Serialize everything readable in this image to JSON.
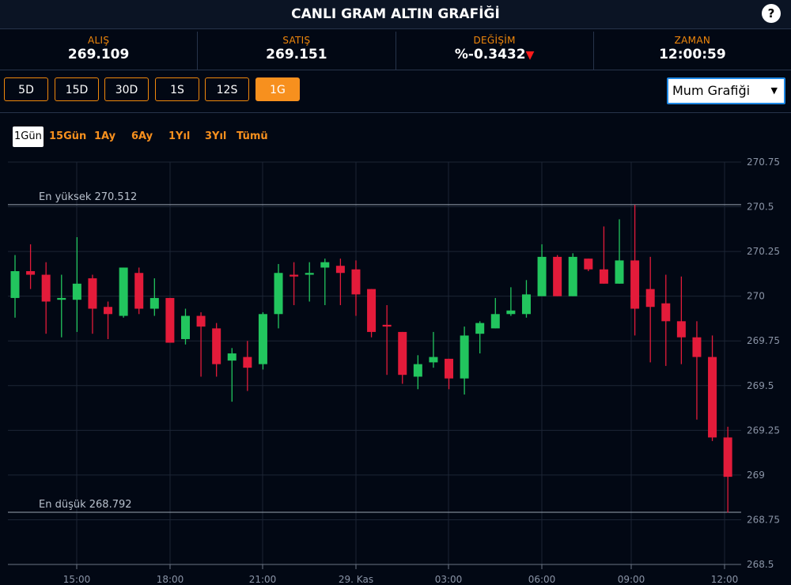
{
  "header": {
    "title": "CANLI GRAM ALTIN GRAFİĞİ",
    "help_label": "?"
  },
  "stats": {
    "alis": {
      "label": "ALIŞ",
      "value": "269.109"
    },
    "satis": {
      "label": "SATIŞ",
      "value": "269.151"
    },
    "degisim": {
      "label": "DEĞİŞİM",
      "value": "%-0.3432"
    },
    "zaman": {
      "label": "ZAMAN",
      "value": "12:00:59"
    }
  },
  "periods": [
    "5D",
    "15D",
    "30D",
    "1S",
    "12S",
    "1G"
  ],
  "active_period": "1G",
  "chart_type_select": {
    "selected": "Mum Grafiği"
  },
  "ranges": [
    "1Gün",
    "15Gün",
    "1Ay",
    "6Ay",
    "1Yıl",
    "3Yıl",
    "Tümü"
  ],
  "active_range": "1Gün",
  "colors": {
    "up": "#22c55e",
    "down": "#e31b3a",
    "accent": "#f7901e",
    "background": "#020814"
  },
  "chart_data": {
    "type": "candlestick",
    "y_ticks": [
      "270.75",
      "270.5",
      "270.25",
      "270",
      "269.75",
      "269.5",
      "269.25",
      "269",
      "268.75",
      "268.5"
    ],
    "ylim": [
      268.5,
      270.75
    ],
    "x_ticks": [
      "15:00",
      "18:00",
      "21:00",
      "29. Kas",
      "03:00",
      "06:00",
      "09:00",
      "12:00"
    ],
    "grid": true,
    "high_line": {
      "label": "En yüksek 270.512",
      "value": 270.512
    },
    "low_line": {
      "label": "En düşük 268.792",
      "value": 268.792
    },
    "candles": [
      {
        "o": 269.99,
        "h": 270.23,
        "l": 269.88,
        "c": 270.14
      },
      {
        "o": 270.14,
        "h": 270.29,
        "l": 270.04,
        "c": 270.12
      },
      {
        "o": 270.12,
        "h": 270.19,
        "l": 269.79,
        "c": 269.97
      },
      {
        "o": 269.98,
        "h": 270.12,
        "l": 269.77,
        "c": 269.99
      },
      {
        "o": 269.98,
        "h": 270.33,
        "l": 269.8,
        "c": 270.07
      },
      {
        "o": 270.1,
        "h": 270.12,
        "l": 269.79,
        "c": 269.93
      },
      {
        "o": 269.94,
        "h": 269.97,
        "l": 269.76,
        "c": 269.9
      },
      {
        "o": 269.89,
        "h": 270.16,
        "l": 269.88,
        "c": 270.16
      },
      {
        "o": 270.13,
        "h": 270.16,
        "l": 269.9,
        "c": 269.93
      },
      {
        "o": 269.93,
        "h": 270.1,
        "l": 269.89,
        "c": 269.99
      },
      {
        "o": 269.99,
        "h": 269.99,
        "l": 269.74,
        "c": 269.74
      },
      {
        "o": 269.76,
        "h": 269.93,
        "l": 269.73,
        "c": 269.89
      },
      {
        "o": 269.89,
        "h": 269.91,
        "l": 269.55,
        "c": 269.83
      },
      {
        "o": 269.82,
        "h": 269.85,
        "l": 269.55,
        "c": 269.62
      },
      {
        "o": 269.64,
        "h": 269.71,
        "l": 269.41,
        "c": 269.68
      },
      {
        "o": 269.66,
        "h": 269.75,
        "l": 269.47,
        "c": 269.6
      },
      {
        "o": 269.62,
        "h": 269.91,
        "l": 269.59,
        "c": 269.9
      },
      {
        "o": 269.9,
        "h": 270.18,
        "l": 269.82,
        "c": 270.13
      },
      {
        "o": 270.12,
        "h": 270.19,
        "l": 269.95,
        "c": 270.11
      },
      {
        "o": 270.12,
        "h": 270.19,
        "l": 269.97,
        "c": 270.13
      },
      {
        "o": 270.16,
        "h": 270.21,
        "l": 269.95,
        "c": 270.19
      },
      {
        "o": 270.17,
        "h": 270.21,
        "l": 269.95,
        "c": 270.13
      },
      {
        "o": 270.15,
        "h": 270.2,
        "l": 269.89,
        "c": 270.01
      },
      {
        "o": 270.04,
        "h": 270.04,
        "l": 269.77,
        "c": 269.8
      },
      {
        "o": 269.84,
        "h": 269.95,
        "l": 269.56,
        "c": 269.83
      },
      {
        "o": 269.8,
        "h": 269.8,
        "l": 269.51,
        "c": 269.56
      },
      {
        "o": 269.55,
        "h": 269.67,
        "l": 269.48,
        "c": 269.62
      },
      {
        "o": 269.63,
        "h": 269.8,
        "l": 269.6,
        "c": 269.66
      },
      {
        "o": 269.65,
        "h": 269.65,
        "l": 269.48,
        "c": 269.54
      },
      {
        "o": 269.54,
        "h": 269.83,
        "l": 269.45,
        "c": 269.78
      },
      {
        "o": 269.79,
        "h": 269.86,
        "l": 269.68,
        "c": 269.85
      },
      {
        "o": 269.82,
        "h": 269.99,
        "l": 269.82,
        "c": 269.9
      },
      {
        "o": 269.9,
        "h": 270.05,
        "l": 269.89,
        "c": 269.92
      },
      {
        "o": 269.9,
        "h": 270.09,
        "l": 269.88,
        "c": 270.01
      },
      {
        "o": 270.0,
        "h": 270.29,
        "l": 270.0,
        "c": 270.22
      },
      {
        "o": 270.22,
        "h": 270.23,
        "l": 270.0,
        "c": 270.0
      },
      {
        "o": 270.0,
        "h": 270.24,
        "l": 270.0,
        "c": 270.22
      },
      {
        "o": 270.21,
        "h": 270.21,
        "l": 270.14,
        "c": 270.15
      },
      {
        "o": 270.15,
        "h": 270.39,
        "l": 270.07,
        "c": 270.07
      },
      {
        "o": 270.07,
        "h": 270.43,
        "l": 270.07,
        "c": 270.2
      },
      {
        "o": 270.2,
        "h": 270.51,
        "l": 269.78,
        "c": 269.93
      },
      {
        "o": 270.04,
        "h": 270.22,
        "l": 269.63,
        "c": 269.94
      },
      {
        "o": 269.96,
        "h": 270.12,
        "l": 269.61,
        "c": 269.86
      },
      {
        "o": 269.86,
        "h": 270.11,
        "l": 269.62,
        "c": 269.77
      },
      {
        "o": 269.77,
        "h": 269.86,
        "l": 269.31,
        "c": 269.66
      },
      {
        "o": 269.66,
        "h": 269.78,
        "l": 269.19,
        "c": 269.21
      },
      {
        "o": 269.21,
        "h": 269.27,
        "l": 268.79,
        "c": 268.99
      }
    ]
  }
}
